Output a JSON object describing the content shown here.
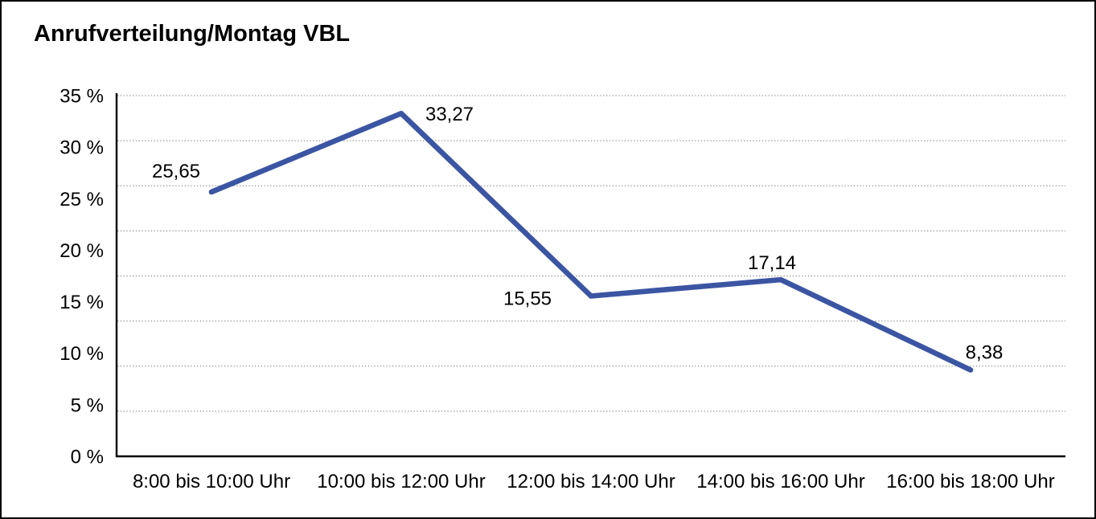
{
  "page": {
    "background": "#FFFFFF",
    "border_color": "#000000"
  },
  "chart_data": {
    "type": "line",
    "title": "Anrufverteilung/Montag VBL",
    "categories": [
      "8:00 bis 10:00 Uhr",
      "10:00 bis 12:00 Uhr",
      "12:00 bis 14:00 Uhr",
      "14:00 bis 16:00 Uhr",
      "16:00 bis 18:00 Uhr"
    ],
    "values": [
      25.65,
      33.27,
      15.55,
      17.14,
      8.38
    ],
    "value_labels": [
      "25,65",
      "33,27",
      "15,55",
      "17,14",
      "8,38"
    ],
    "xlabel": "",
    "ylabel": "",
    "ylim": [
      0,
      35
    ],
    "ytick_step": 5,
    "ytick_labels": [
      "0 %",
      "5 %",
      "10 %",
      "15 %",
      "20 %",
      "25 %",
      "30 %",
      "35 %"
    ],
    "grid": "horizontal dotted",
    "grid_divisions": 8,
    "legend": "none",
    "line_color": "#3B55A3",
    "gridline_color": "#808080",
    "axis_color": "#000000",
    "text_color": "#000000"
  }
}
